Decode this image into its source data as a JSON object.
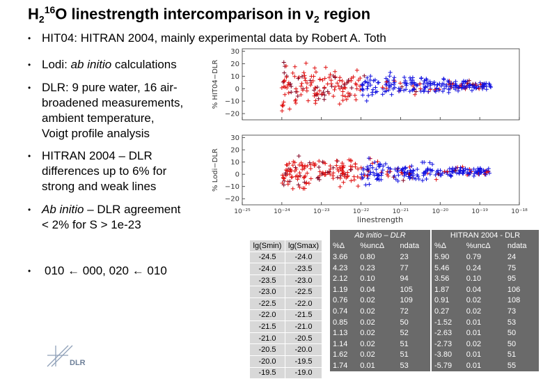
{
  "title": {
    "h": "H",
    "sub": "2",
    "sup": "16",
    "rest": "O linestrength intercomparison in ",
    "nu": "ν",
    "nu_sub": "2",
    "tail": " region"
  },
  "bullets": [
    "HIT04: HITRAN 2004, mainly experimental data by Robert A. Toth",
    "Lodi: ab initio calculations",
    "DLR: 9 pure water, 16 air-broadened measurements, ambient temperature, Voigt profile analysis",
    "HITRAN 2004 – DLR differences up to 6% for strong and weak lines",
    "Ab initio – DLR agreement < 2% for S > 1e-23",
    "010 ← 000, 020 ← 010"
  ],
  "bullet_lines": {
    "b1": [
      "HIT04: HITRAN 2004, mainly experimental data by Robert A. Toth"
    ],
    "b2_a": "Lodi: ",
    "b2_b": "ab initio",
    "b2_c": " calculations",
    "b3": [
      "DLR: 9 pure water, 16 air-",
      "broadened measurements,",
      "ambient temperature,",
      "Voigt profile analysis"
    ],
    "b4": [
      "HITRAN 2004 – DLR",
      "differences up to 6% for",
      "strong and weak lines"
    ],
    "b5_a": "Ab initio",
    "b5_b": " – DLR agreement",
    "b5_c": "< 2% for S > 1e-23",
    "b6": "010 ← 000, 020 ← 010"
  },
  "plot": {
    "top_ylabel": "% HIT04−DLR",
    "bottom_ylabel": "% Lodi−DLR",
    "y_ticks": [
      "30",
      "20",
      "10",
      "0",
      "−10",
      "−20"
    ],
    "x_ticks": [
      "10⁻²⁵",
      "10⁻²⁴",
      "10⁻²³",
      "10⁻²²",
      "10⁻²¹",
      "10⁻²⁰",
      "10⁻¹⁹",
      "10⁻¹⁸"
    ],
    "xlabel": "linestrength",
    "colors": {
      "blue": "#1010e0",
      "red": "#e01010",
      "darkred": "#800020"
    }
  },
  "logo": {
    "text": "DLR"
  },
  "table": {
    "lg_headers": [
      "lg(Smin)",
      "lg(Smax)"
    ],
    "lg_rows": [
      [
        "-24.5",
        "-24.0"
      ],
      [
        "-24.0",
        "-23.5"
      ],
      [
        "-23.5",
        "-23.0"
      ],
      [
        "-23.0",
        "-22.5"
      ],
      [
        "-22.5",
        "-22.0"
      ],
      [
        "-22.0",
        "-21.5"
      ],
      [
        "-21.5",
        "-21.0"
      ],
      [
        "-21.0",
        "-20.5"
      ],
      [
        "-20.5",
        "-20.0"
      ],
      [
        "-20.0",
        "-19.5"
      ],
      [
        "-19.5",
        "-19.0"
      ]
    ],
    "ab_caption": "Ab initio – DLR",
    "ab_headers": [
      "%Δ",
      "%uncΔ",
      "ndata"
    ],
    "ab_rows": [
      [
        "3.66",
        "0.80",
        "23"
      ],
      [
        "4.23",
        "0.23",
        "77"
      ],
      [
        "2.12",
        "0.10",
        "94"
      ],
      [
        "1.19",
        "0.04",
        "105"
      ],
      [
        "0.76",
        "0.02",
        "109"
      ],
      [
        "0.74",
        "0.02",
        "72"
      ],
      [
        "0.85",
        "0.02",
        "50"
      ],
      [
        "1.13",
        "0.02",
        "52"
      ],
      [
        "1.14",
        "0.02",
        "51"
      ],
      [
        "1.62",
        "0.02",
        "51"
      ],
      [
        "1.74",
        "0.01",
        "53"
      ]
    ],
    "hi_caption": "HITRAN 2004 - DLR",
    "hi_headers": [
      "%Δ",
      "%uncΔ",
      "ndata"
    ],
    "hi_rows": [
      [
        "5.90",
        "0.79",
        "24"
      ],
      [
        "5.46",
        "0.24",
        "75"
      ],
      [
        "3.56",
        "0.10",
        "95"
      ],
      [
        "1.87",
        "0.04",
        "106"
      ],
      [
        "0.91",
        "0.02",
        "108"
      ],
      [
        "0.27",
        "0.02",
        "73"
      ],
      [
        "-1.52",
        "0.01",
        "53"
      ],
      [
        "-2.63",
        "0.01",
        "50"
      ],
      [
        "-2.73",
        "0.02",
        "50"
      ],
      [
        "-3.80",
        "0.01",
        "51"
      ],
      [
        "-5.79",
        "0.01",
        "55"
      ]
    ]
  }
}
